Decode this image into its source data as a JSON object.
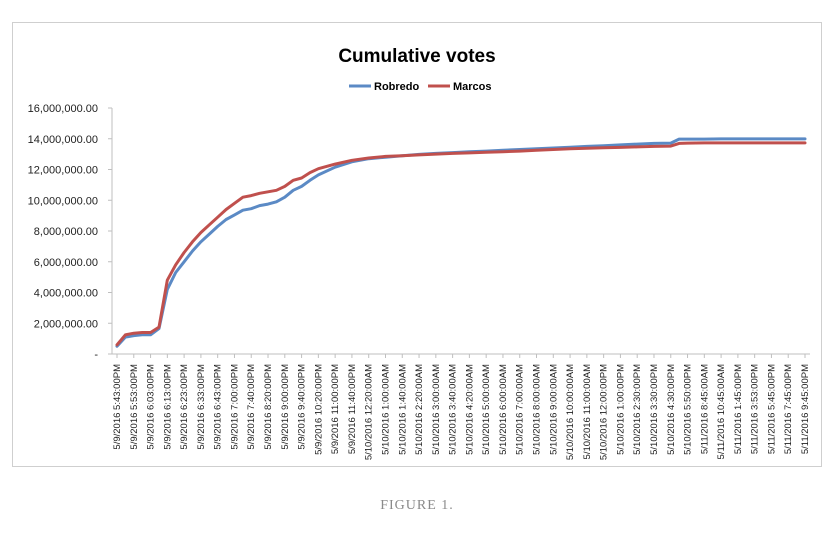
{
  "caption": "FIGURE 1.",
  "colors": {
    "robredo": "#5b8ac5",
    "marcos": "#c0504d",
    "axis": "#bfbfbf"
  },
  "chart_data": {
    "type": "line",
    "title": "Cumulative votes",
    "xlabel": "",
    "ylabel": "",
    "ylim": [
      0,
      16000000
    ],
    "y_ticks": [
      {
        "value": 0,
        "label": "-"
      },
      {
        "value": 2000000,
        "label": "2,000,000.00"
      },
      {
        "value": 4000000,
        "label": "4,000,000.00"
      },
      {
        "value": 6000000,
        "label": "6,000,000.00"
      },
      {
        "value": 8000000,
        "label": "8,000,000.00"
      },
      {
        "value": 10000000,
        "label": "10,000,000.00"
      },
      {
        "value": 12000000,
        "label": "12,000,000.00"
      },
      {
        "value": 14000000,
        "label": "14,000,000.00"
      },
      {
        "value": 16000000,
        "label": "16,000,000.00"
      }
    ],
    "grid": false,
    "legend": "top-center",
    "categories": [
      "5/9/2016 5:43:00PM",
      "5/9/2016 5:53:00PM",
      "5/9/2016 6:03:00PM",
      "5/9/2016 6:13:00PM",
      "5/9/2016 6:23:00PM",
      "5/9/2016 6:33:00PM",
      "5/9/2016 6:43:00PM",
      "5/9/2016 7:00:00PM",
      "5/9/2016 7:40:00PM",
      "5/9/2016 8:20:00PM",
      "5/9/2016 9:00:00PM",
      "5/9/2016 9:40:00PM",
      "5/9/2016 10:20:00PM",
      "5/9/2016 11:00:00PM",
      "5/9/2016 11:40:00PM",
      "5/10/2016 12:20:00AM",
      "5/10/2016 1:00:00AM",
      "5/10/2016 1:40:00AM",
      "5/10/2016 2:20:00AM",
      "5/10/2016 3:00:00AM",
      "5/10/2016 3:40:00AM",
      "5/10/2016 4:20:00AM",
      "5/10/2016 5:00:00AM",
      "5/10/2016 6:00:00AM",
      "5/10/2016 7:00:00AM",
      "5/10/2016 8:00:00AM",
      "5/10/2016 9:00:00AM",
      "5/10/2016 10:00:00AM",
      "5/10/2016 11:00:00AM",
      "5/10/2016 12:00:00PM",
      "5/10/2016 1:00:00PM",
      "5/10/2016 2:30:00PM",
      "5/10/2016 3:30:00PM",
      "5/10/2016 4:30:00PM",
      "5/10/2016 5:50:00PM",
      "5/11/2016 8:45:00AM",
      "5/11/2016 10:45:00AM",
      "5/11/2016 1:45:00PM",
      "5/11/2016 3:53:00PM",
      "5/11/2016 5:45:00PM",
      "5/11/2016 7:45:00PM",
      "5/11/2016 9:45:00PM"
    ],
    "series": [
      {
        "name": "Robredo",
        "values": [
          {
            "i": 0,
            "y": 500000
          },
          {
            "i": 0.5,
            "y": 1100000
          },
          {
            "i": 1,
            "y": 1200000
          },
          {
            "i": 1.5,
            "y": 1250000
          },
          {
            "i": 2,
            "y": 1250000
          },
          {
            "i": 2.5,
            "y": 1650000
          },
          {
            "i": 3,
            "y": 4200000
          },
          {
            "i": 3.5,
            "y": 5300000
          },
          {
            "i": 4,
            "y": 6000000
          },
          {
            "i": 4.5,
            "y": 6700000
          },
          {
            "i": 5,
            "y": 7300000
          },
          {
            "i": 5.5,
            "y": 7800000
          },
          {
            "i": 6,
            "y": 8300000
          },
          {
            "i": 6.5,
            "y": 8750000
          },
          {
            "i": 7,
            "y": 9050000
          },
          {
            "i": 7.5,
            "y": 9350000
          },
          {
            "i": 8,
            "y": 9450000
          },
          {
            "i": 8.5,
            "y": 9650000
          },
          {
            "i": 9,
            "y": 9750000
          },
          {
            "i": 9.5,
            "y": 9900000
          },
          {
            "i": 10,
            "y": 10200000
          },
          {
            "i": 10.5,
            "y": 10650000
          },
          {
            "i": 11,
            "y": 10900000
          },
          {
            "i": 11.5,
            "y": 11300000
          },
          {
            "i": 12,
            "y": 11650000
          },
          {
            "i": 13,
            "y": 12150000
          },
          {
            "i": 14,
            "y": 12500000
          },
          {
            "i": 15,
            "y": 12700000
          },
          {
            "i": 16,
            "y": 12800000
          },
          {
            "i": 17,
            "y": 12900000
          },
          {
            "i": 18,
            "y": 12980000
          },
          {
            "i": 19,
            "y": 13050000
          },
          {
            "i": 20,
            "y": 13100000
          },
          {
            "i": 21,
            "y": 13150000
          },
          {
            "i": 22,
            "y": 13200000
          },
          {
            "i": 23,
            "y": 13250000
          },
          {
            "i": 24,
            "y": 13300000
          },
          {
            "i": 25,
            "y": 13350000
          },
          {
            "i": 26,
            "y": 13400000
          },
          {
            "i": 27,
            "y": 13450000
          },
          {
            "i": 28,
            "y": 13500000
          },
          {
            "i": 29,
            "y": 13550000
          },
          {
            "i": 30,
            "y": 13600000
          },
          {
            "i": 31,
            "y": 13650000
          },
          {
            "i": 32,
            "y": 13700000
          },
          {
            "i": 33,
            "y": 13720000
          },
          {
            "i": 33.5,
            "y": 13980000
          },
          {
            "i": 34,
            "y": 13980000
          },
          {
            "i": 35,
            "y": 13980000
          },
          {
            "i": 36,
            "y": 13990000
          },
          {
            "i": 37,
            "y": 13990000
          },
          {
            "i": 38,
            "y": 13990000
          },
          {
            "i": 39,
            "y": 13990000
          },
          {
            "i": 40,
            "y": 13990000
          },
          {
            "i": 41,
            "y": 13990000
          }
        ]
      },
      {
        "name": "Marcos",
        "values": [
          {
            "i": 0,
            "y": 600000
          },
          {
            "i": 0.5,
            "y": 1250000
          },
          {
            "i": 1,
            "y": 1350000
          },
          {
            "i": 1.5,
            "y": 1400000
          },
          {
            "i": 2,
            "y": 1400000
          },
          {
            "i": 2.5,
            "y": 1750000
          },
          {
            "i": 3,
            "y": 4800000
          },
          {
            "i": 3.5,
            "y": 5800000
          },
          {
            "i": 4,
            "y": 6600000
          },
          {
            "i": 4.5,
            "y": 7300000
          },
          {
            "i": 5,
            "y": 7900000
          },
          {
            "i": 5.5,
            "y": 8400000
          },
          {
            "i": 6,
            "y": 8900000
          },
          {
            "i": 6.5,
            "y": 9400000
          },
          {
            "i": 7,
            "y": 9800000
          },
          {
            "i": 7.5,
            "y": 10200000
          },
          {
            "i": 8,
            "y": 10300000
          },
          {
            "i": 8.5,
            "y": 10450000
          },
          {
            "i": 9,
            "y": 10550000
          },
          {
            "i": 9.5,
            "y": 10650000
          },
          {
            "i": 10,
            "y": 10900000
          },
          {
            "i": 10.5,
            "y": 11300000
          },
          {
            "i": 11,
            "y": 11450000
          },
          {
            "i": 11.5,
            "y": 11800000
          },
          {
            "i": 12,
            "y": 12050000
          },
          {
            "i": 13,
            "y": 12350000
          },
          {
            "i": 14,
            "y": 12600000
          },
          {
            "i": 15,
            "y": 12750000
          },
          {
            "i": 16,
            "y": 12850000
          },
          {
            "i": 17,
            "y": 12900000
          },
          {
            "i": 18,
            "y": 12950000
          },
          {
            "i": 19,
            "y": 13000000
          },
          {
            "i": 20,
            "y": 13050000
          },
          {
            "i": 21,
            "y": 13080000
          },
          {
            "i": 22,
            "y": 13120000
          },
          {
            "i": 23,
            "y": 13160000
          },
          {
            "i": 24,
            "y": 13200000
          },
          {
            "i": 25,
            "y": 13250000
          },
          {
            "i": 26,
            "y": 13300000
          },
          {
            "i": 27,
            "y": 13350000
          },
          {
            "i": 28,
            "y": 13380000
          },
          {
            "i": 29,
            "y": 13410000
          },
          {
            "i": 30,
            "y": 13440000
          },
          {
            "i": 31,
            "y": 13470000
          },
          {
            "i": 32,
            "y": 13500000
          },
          {
            "i": 33,
            "y": 13520000
          },
          {
            "i": 33.5,
            "y": 13700000
          },
          {
            "i": 34,
            "y": 13720000
          },
          {
            "i": 35,
            "y": 13730000
          },
          {
            "i": 36,
            "y": 13730000
          },
          {
            "i": 37,
            "y": 13730000
          },
          {
            "i": 38,
            "y": 13730000
          },
          {
            "i": 39,
            "y": 13730000
          },
          {
            "i": 40,
            "y": 13730000
          },
          {
            "i": 41,
            "y": 13730000
          }
        ]
      }
    ]
  }
}
